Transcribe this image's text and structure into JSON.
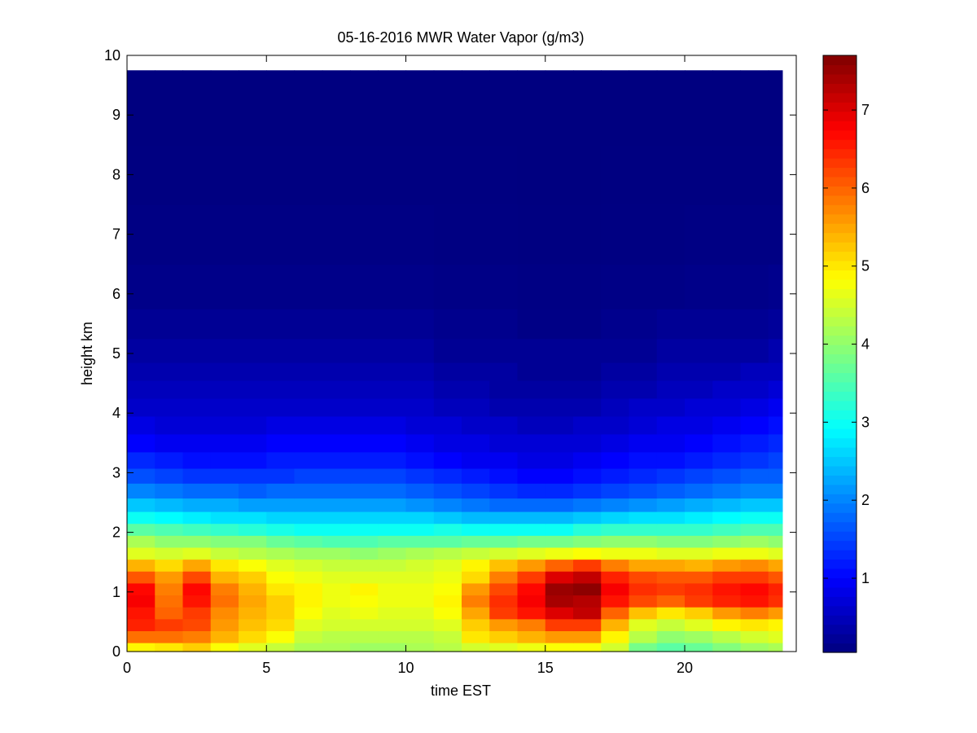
{
  "chart_data": {
    "type": "heatmap",
    "title": "05-16-2016 MWR Water Vapor (g/m3)",
    "xlabel": "time EST",
    "ylabel": "height km",
    "xlim": [
      0,
      24
    ],
    "ylim": [
      0,
      10
    ],
    "xticks": [
      0,
      5,
      10,
      15,
      20
    ],
    "yticks": [
      0,
      1,
      2,
      3,
      4,
      5,
      6,
      7,
      8,
      9,
      10
    ],
    "colorbar": {
      "colormap": "jet",
      "range": [
        0.05,
        7.7
      ],
      "ticks": [
        1,
        2,
        3,
        4,
        5,
        6,
        7
      ]
    },
    "grid": false,
    "data_extent": {
      "x": [
        0,
        23.5
      ],
      "y": [
        0,
        9.75
      ]
    },
    "time_hours": [
      0,
      1,
      2,
      3,
      4,
      5,
      6,
      7,
      8,
      9,
      10,
      11,
      12,
      13,
      14,
      15,
      16,
      17,
      18,
      19,
      20,
      21,
      22,
      23
    ],
    "height_km": [
      0.05,
      0.25,
      0.45,
      0.65,
      0.85,
      1.05,
      1.25,
      1.45,
      1.65,
      1.85,
      2.05,
      2.25,
      2.45,
      2.7,
      2.95,
      3.2,
      3.5,
      3.8,
      4.1,
      4.4,
      4.7,
      5.0,
      5.5,
      6.0,
      7.0,
      8.0,
      9.0,
      9.75
    ],
    "water_vapor": [
      [
        4.9,
        5.0,
        5.2,
        4.8,
        4.6,
        4.4,
        4.2,
        4.2,
        4.1,
        4.1,
        4.2,
        4.3,
        4.5,
        4.6,
        4.7,
        4.8,
        4.8,
        4.5,
        3.8,
        3.6,
        3.7,
        3.9,
        4.1,
        4.2
      ],
      [
        5.9,
        5.9,
        5.8,
        5.4,
        5.1,
        4.8,
        4.4,
        4.3,
        4.3,
        4.3,
        4.3,
        4.4,
        5.0,
        5.2,
        5.4,
        5.6,
        5.6,
        4.9,
        4.3,
        4.0,
        4.1,
        4.3,
        4.5,
        4.6
      ],
      [
        6.5,
        6.3,
        6.2,
        5.6,
        5.3,
        5.1,
        4.6,
        4.5,
        4.5,
        4.5,
        4.5,
        4.6,
        5.2,
        5.6,
        5.8,
        6.3,
        6.3,
        5.4,
        4.6,
        4.4,
        4.6,
        4.9,
        5.0,
        4.9
      ],
      [
        6.6,
        6.0,
        6.3,
        5.7,
        5.4,
        5.2,
        4.8,
        4.6,
        4.7,
        4.6,
        4.6,
        4.8,
        5.5,
        6.3,
        6.6,
        7.0,
        7.2,
        6.0,
        5.3,
        5.0,
        5.2,
        5.6,
        5.8,
        5.6
      ],
      [
        6.8,
        5.9,
        6.6,
        5.9,
        5.5,
        5.2,
        4.9,
        4.7,
        4.8,
        4.7,
        4.7,
        4.9,
        5.8,
        6.4,
        6.8,
        7.4,
        7.3,
        6.6,
        6.2,
        6.0,
        6.3,
        6.5,
        6.6,
        6.4
      ],
      [
        6.7,
        5.8,
        6.7,
        5.8,
        5.4,
        5.0,
        4.9,
        4.7,
        4.9,
        4.7,
        4.7,
        4.8,
        5.6,
        6.2,
        6.7,
        7.5,
        7.6,
        6.8,
        6.4,
        6.3,
        6.4,
        6.6,
        6.7,
        6.5
      ],
      [
        6.1,
        5.6,
        6.2,
        5.4,
        5.2,
        4.8,
        4.7,
        4.6,
        4.6,
        4.6,
        4.6,
        4.7,
        5.1,
        5.8,
        6.3,
        7.0,
        7.2,
        6.5,
        6.2,
        6.1,
        6.1,
        6.3,
        6.3,
        6.1
      ],
      [
        5.4,
        5.1,
        5.5,
        5.0,
        4.8,
        4.6,
        4.5,
        4.4,
        4.4,
        4.4,
        4.5,
        4.6,
        4.9,
        5.3,
        5.6,
        6.0,
        6.3,
        5.8,
        5.5,
        5.5,
        5.4,
        5.6,
        5.7,
        5.5
      ],
      [
        4.6,
        4.5,
        4.6,
        4.4,
        4.3,
        4.2,
        4.1,
        4.1,
        4.0,
        4.1,
        4.2,
        4.3,
        4.4,
        4.5,
        4.6,
        4.7,
        4.8,
        4.7,
        4.7,
        4.6,
        4.6,
        4.7,
        4.7,
        4.6
      ],
      [
        4.2,
        4.0,
        4.0,
        3.9,
        3.9,
        3.7,
        3.6,
        3.5,
        3.5,
        3.6,
        3.6,
        3.6,
        3.7,
        3.7,
        3.8,
        3.8,
        3.9,
        4.0,
        4.0,
        3.9,
        3.9,
        4.0,
        4.1,
        4.0
      ],
      [
        3.6,
        3.5,
        3.4,
        3.3,
        3.2,
        3.1,
        3.0,
        3.0,
        3.0,
        3.0,
        3.0,
        3.1,
        3.0,
        3.0,
        3.0,
        3.0,
        3.2,
        3.3,
        3.3,
        3.3,
        3.3,
        3.4,
        3.5,
        3.5
      ],
      [
        3.0,
        2.9,
        2.8,
        2.7,
        2.7,
        2.6,
        2.6,
        2.6,
        2.6,
        2.6,
        2.6,
        2.5,
        2.4,
        2.4,
        2.4,
        2.4,
        2.5,
        2.6,
        2.7,
        2.7,
        2.8,
        2.9,
        3.0,
        3.0
      ],
      [
        2.5,
        2.4,
        2.3,
        2.3,
        2.2,
        2.2,
        2.2,
        2.2,
        2.2,
        2.2,
        2.1,
        2.0,
        1.9,
        1.8,
        1.8,
        1.8,
        1.9,
        2.0,
        2.1,
        2.2,
        2.3,
        2.4,
        2.5,
        2.5
      ],
      [
        2.0,
        1.9,
        1.8,
        1.8,
        1.7,
        1.8,
        1.8,
        1.8,
        1.8,
        1.8,
        1.7,
        1.6,
        1.5,
        1.4,
        1.3,
        1.3,
        1.4,
        1.5,
        1.6,
        1.7,
        1.8,
        1.9,
        2.0,
        2.0
      ],
      [
        1.6,
        1.5,
        1.4,
        1.4,
        1.4,
        1.4,
        1.5,
        1.5,
        1.5,
        1.5,
        1.4,
        1.3,
        1.2,
        1.1,
        1.0,
        1.0,
        1.1,
        1.2,
        1.3,
        1.4,
        1.5,
        1.6,
        1.7,
        1.7
      ],
      [
        1.3,
        1.2,
        1.1,
        1.1,
        1.1,
        1.2,
        1.2,
        1.2,
        1.2,
        1.2,
        1.1,
        1.0,
        0.9,
        0.9,
        0.8,
        0.8,
        0.9,
        1.0,
        1.1,
        1.1,
        1.2,
        1.3,
        1.4,
        1.5
      ],
      [
        1.0,
        0.9,
        0.9,
        0.9,
        0.9,
        1.0,
        1.0,
        1.0,
        1.0,
        1.0,
        0.9,
        0.8,
        0.8,
        0.7,
        0.7,
        0.7,
        0.7,
        0.8,
        0.9,
        0.9,
        1.0,
        1.1,
        1.2,
        1.3
      ],
      [
        0.8,
        0.7,
        0.7,
        0.7,
        0.7,
        0.8,
        0.8,
        0.8,
        0.8,
        0.8,
        0.7,
        0.7,
        0.6,
        0.6,
        0.5,
        0.5,
        0.6,
        0.6,
        0.7,
        0.8,
        0.8,
        0.9,
        1.0,
        1.1
      ],
      [
        0.6,
        0.6,
        0.6,
        0.6,
        0.6,
        0.6,
        0.6,
        0.6,
        0.6,
        0.6,
        0.6,
        0.5,
        0.5,
        0.4,
        0.4,
        0.4,
        0.4,
        0.5,
        0.6,
        0.6,
        0.7,
        0.7,
        0.8,
        0.9
      ],
      [
        0.5,
        0.5,
        0.5,
        0.5,
        0.5,
        0.5,
        0.5,
        0.5,
        0.5,
        0.5,
        0.5,
        0.4,
        0.4,
        0.3,
        0.3,
        0.3,
        0.3,
        0.4,
        0.4,
        0.5,
        0.5,
        0.6,
        0.6,
        0.7
      ],
      [
        0.4,
        0.4,
        0.4,
        0.4,
        0.4,
        0.4,
        0.4,
        0.4,
        0.4,
        0.4,
        0.4,
        0.3,
        0.3,
        0.3,
        0.2,
        0.2,
        0.2,
        0.3,
        0.3,
        0.4,
        0.4,
        0.4,
        0.5,
        0.5
      ],
      [
        0.3,
        0.3,
        0.3,
        0.3,
        0.3,
        0.3,
        0.3,
        0.3,
        0.3,
        0.3,
        0.3,
        0.2,
        0.2,
        0.2,
        0.2,
        0.2,
        0.2,
        0.2,
        0.2,
        0.3,
        0.3,
        0.3,
        0.3,
        0.4
      ],
      [
        0.2,
        0.2,
        0.2,
        0.2,
        0.2,
        0.2,
        0.2,
        0.2,
        0.2,
        0.2,
        0.2,
        0.15,
        0.15,
        0.15,
        0.1,
        0.1,
        0.1,
        0.15,
        0.15,
        0.2,
        0.2,
        0.2,
        0.2,
        0.25
      ],
      [
        0.12,
        0.12,
        0.12,
        0.12,
        0.12,
        0.12,
        0.12,
        0.12,
        0.12,
        0.12,
        0.12,
        0.1,
        0.1,
        0.1,
        0.08,
        0.08,
        0.08,
        0.1,
        0.1,
        0.1,
        0.12,
        0.12,
        0.12,
        0.15
      ],
      [
        0.08,
        0.08,
        0.08,
        0.08,
        0.08,
        0.08,
        0.08,
        0.08,
        0.08,
        0.08,
        0.08,
        0.07,
        0.07,
        0.07,
        0.06,
        0.06,
        0.06,
        0.07,
        0.07,
        0.07,
        0.08,
        0.08,
        0.08,
        0.08
      ],
      [
        0.06,
        0.06,
        0.06,
        0.06,
        0.06,
        0.06,
        0.06,
        0.06,
        0.06,
        0.06,
        0.06,
        0.06,
        0.06,
        0.06,
        0.05,
        0.05,
        0.05,
        0.06,
        0.06,
        0.06,
        0.06,
        0.06,
        0.06,
        0.06
      ],
      [
        0.05,
        0.05,
        0.05,
        0.05,
        0.05,
        0.05,
        0.05,
        0.05,
        0.05,
        0.05,
        0.05,
        0.05,
        0.05,
        0.05,
        0.05,
        0.05,
        0.05,
        0.05,
        0.05,
        0.05,
        0.05,
        0.05,
        0.05,
        0.05
      ],
      [
        0.05,
        0.05,
        0.05,
        0.05,
        0.05,
        0.05,
        0.05,
        0.05,
        0.05,
        0.05,
        0.05,
        0.05,
        0.05,
        0.05,
        0.05,
        0.05,
        0.05,
        0.05,
        0.05,
        0.05,
        0.05,
        0.05,
        0.05,
        0.05
      ]
    ]
  }
}
